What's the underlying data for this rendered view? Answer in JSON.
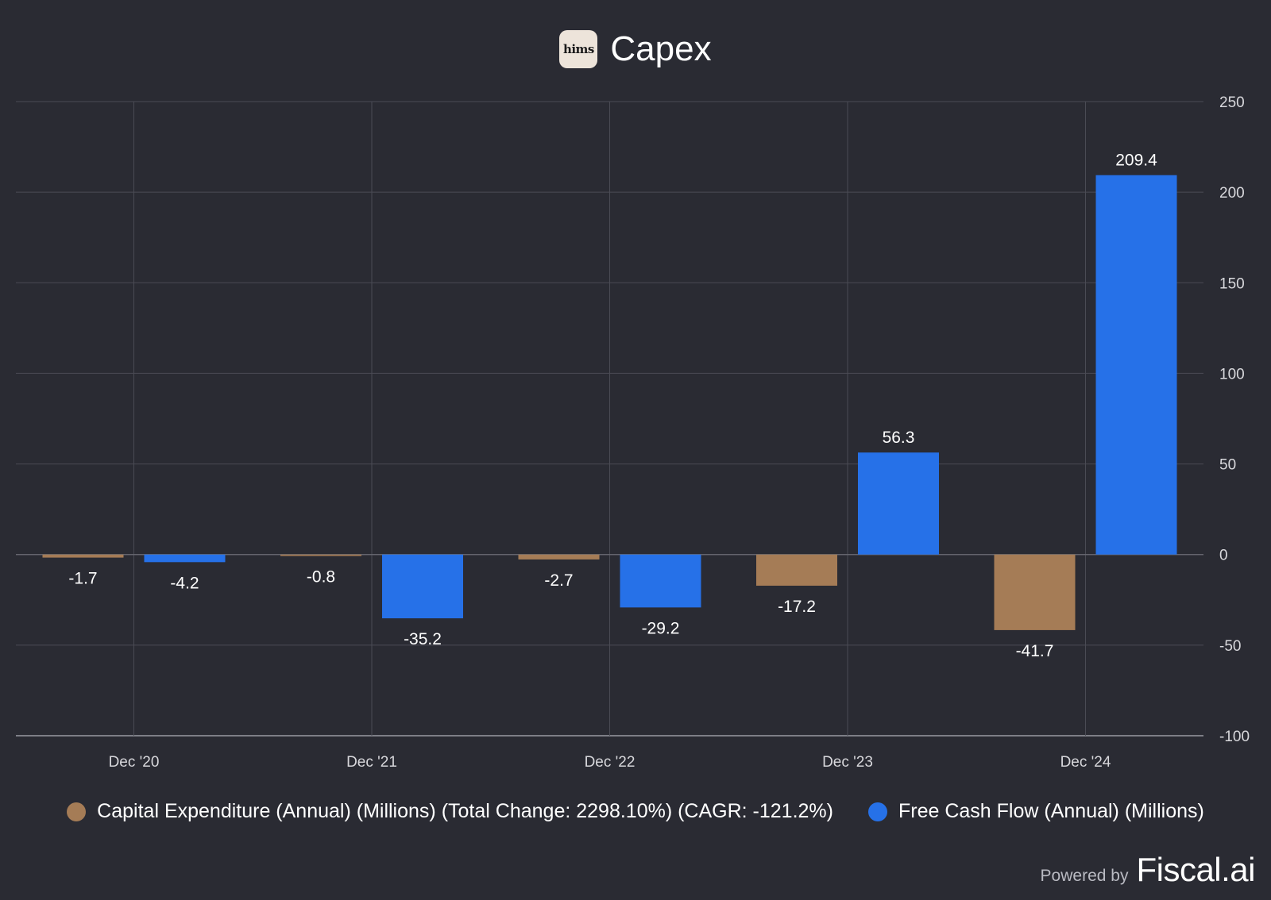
{
  "header": {
    "logo_text": "hims",
    "title": "Capex"
  },
  "colors": {
    "background": "#2a2b33",
    "capex": "#a57c56",
    "fcf": "#2671e8",
    "grid": "#4a4b54",
    "axis_text": "#d8d8dc"
  },
  "chart_data": {
    "type": "bar",
    "title": "Capex",
    "categories": [
      "Dec '20",
      "Dec '21",
      "Dec '22",
      "Dec '23",
      "Dec '24"
    ],
    "series": [
      {
        "name": "Capital Expenditure (Annual) (Millions) (Total Change: 2298.10%) (CAGR: -121.2%)",
        "values": [
          -1.7,
          -0.8,
          -2.7,
          -17.2,
          -41.7
        ],
        "color": "#a57c56"
      },
      {
        "name": "Free Cash Flow (Annual) (Millions)",
        "values": [
          -4.2,
          -35.2,
          -29.2,
          56.3,
          209.4
        ],
        "color": "#2671e8"
      }
    ],
    "data_labels": [
      [
        "-1.7",
        "-0.8",
        "-2.7",
        "-17.2",
        "-41.7"
      ],
      [
        "-4.2",
        "-35.2",
        "-29.2",
        "56.3",
        "209.4"
      ]
    ],
    "ylim": [
      -100,
      250
    ],
    "yticks": [
      250,
      200,
      150,
      100,
      50,
      0,
      -50,
      -100
    ],
    "ytick_labels": [
      "250",
      "200",
      "150",
      "100",
      "50",
      "0",
      "-50",
      "-100"
    ],
    "y_axis_position": "right",
    "grid": true,
    "legend_position": "bottom"
  },
  "legend": [
    {
      "label": "Capital Expenditure (Annual) (Millions) (Total Change: 2298.10%) (CAGR: -121.2%)",
      "color": "#a57c56"
    },
    {
      "label": "Free Cash Flow (Annual) (Millions)",
      "color": "#2671e8"
    }
  ],
  "footer": {
    "powered_by": "Powered by",
    "brand": "Fiscal.ai"
  }
}
